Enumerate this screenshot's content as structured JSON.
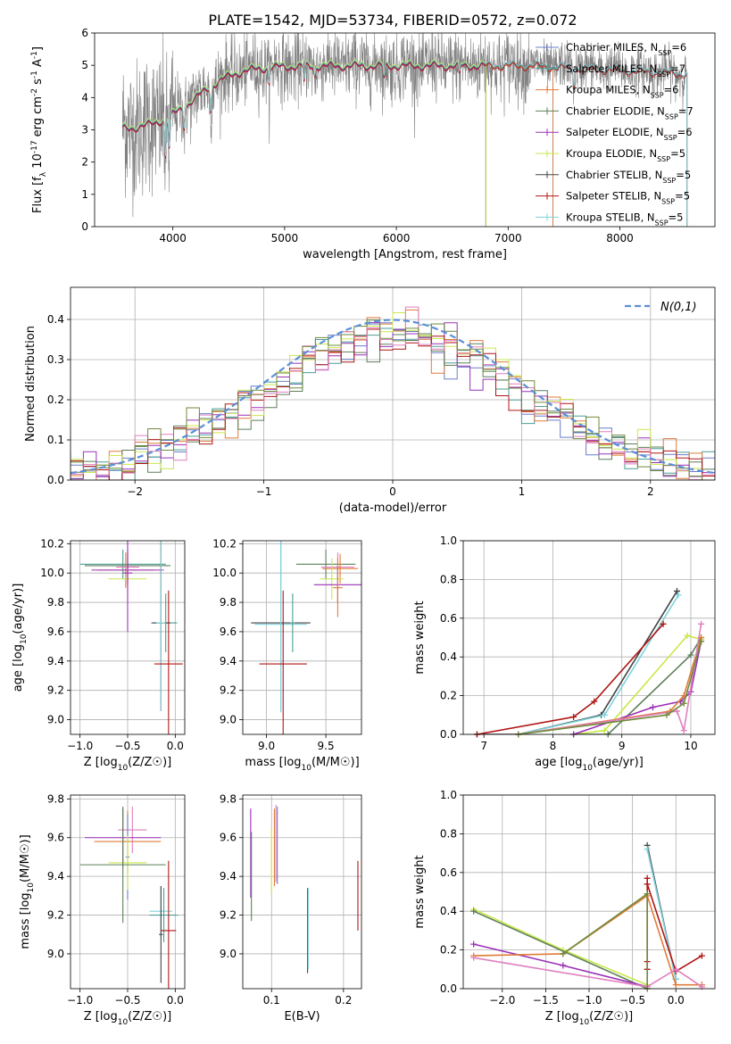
{
  "figure": {
    "title": "PLATE=1542, MJD=53734, FIBERID=0572, z=0.072"
  },
  "colors": {
    "chabrier_miles": "#6a7fc8",
    "salpeter_miles": "#4a9e95",
    "kroupa_miles": "#e07b39",
    "chabrier_elodie": "#5e7f5a",
    "salpeter_elodie": "#9b30b8",
    "kroupa_elodie": "#c9e84b",
    "chabrier_stelib": "#444444",
    "salpeter_stelib": "#b01515",
    "kroupa_stelib": "#7fd3dc",
    "pink": "#e07fbf",
    "olive": "#6f8a3a",
    "data": "#808080",
    "normal": "#5b8fd6",
    "grid": "#b0b0b0"
  },
  "chart_data": [
    {
      "id": "spectrum",
      "type": "line",
      "xlabel": "wavelength [Angstrom, rest frame]",
      "ylabel": "Flux [f_λ 10^-17 erg cm^-2 s^-1 A^-1]",
      "xlim": [
        3300,
        8850
      ],
      "ylim": [
        0,
        6
      ],
      "xticks": [
        4000,
        5000,
        6000,
        7000,
        8000
      ],
      "yticks": [
        0,
        1,
        2,
        3,
        4,
        5,
        6
      ],
      "grid": false,
      "legend_position": "top-right",
      "data_range": [
        3550,
        8600
      ],
      "series": [
        {
          "name": "Chabrier MILES, N_SSP=6",
          "color_key": "chabrier_miles",
          "range": [
            3550,
            7400
          ],
          "offset": 0.02
        },
        {
          "name": "Salpeter MILES, N_SSP=7",
          "color_key": "salpeter_miles",
          "range": [
            3550,
            7400
          ],
          "offset": 0.0
        },
        {
          "name": "Kroupa MILES, N_SSP=6",
          "color_key": "kroupa_miles",
          "range": [
            3550,
            7400
          ],
          "offset": -0.02
        },
        {
          "name": "Chabrier ELODIE, N_SSP=7",
          "color_key": "chabrier_elodie",
          "range": [
            3550,
            6800
          ],
          "offset": 0.03
        },
        {
          "name": "Salpeter ELODIE, N_SSP=6",
          "color_key": "salpeter_elodie",
          "range": [
            3550,
            6800
          ],
          "offset": -0.03
        },
        {
          "name": "Kroupa ELODIE, N_SSP=5",
          "color_key": "kroupa_elodie",
          "range": [
            3550,
            6800
          ],
          "offset": 0.05
        },
        {
          "name": "Chabrier STELIB, N_SSP=5",
          "color_key": "chabrier_stelib",
          "range": [
            3550,
            8600
          ],
          "offset": 0.0
        },
        {
          "name": "Salpeter STELIB, N_SSP=5",
          "color_key": "salpeter_stelib",
          "range": [
            3550,
            8600
          ],
          "offset": -0.05
        },
        {
          "name": "Kroupa STELIB, N_SSP=5",
          "color_key": "kroupa_stelib",
          "range": [
            3550,
            8600
          ],
          "offset": 0.02
        }
      ]
    },
    {
      "id": "residuals",
      "type": "histogram",
      "xlabel": "(data-model)/error",
      "ylabel": "Normed distribution",
      "xlim": [
        -2.5,
        2.5
      ],
      "ylim": [
        0,
        0.48
      ],
      "xticks": [
        -2,
        -1,
        0,
        1,
        2
      ],
      "yticks": [
        0.0,
        0.1,
        0.2,
        0.3,
        0.4
      ],
      "grid": true,
      "bin_width": 0.1,
      "legend_position": "top-right",
      "reference": {
        "name": "N(0,1)",
        "mean": 0,
        "sigma": 1
      },
      "series_color_keys": [
        "chabrier_miles",
        "salpeter_miles",
        "kroupa_miles",
        "chabrier_elodie",
        "salpeter_elodie",
        "kroupa_elodie",
        "salpeter_stelib",
        "pink",
        "olive"
      ]
    },
    {
      "id": "age_vs_Z",
      "type": "errorbar",
      "xlabel": "Z [log10(Z/Z☉)]",
      "ylabel": "age [log10(age/yr)]",
      "xlim": [
        -1.1,
        0.1
      ],
      "ylim": [
        8.9,
        10.22
      ],
      "xticks": [
        -1.0,
        -0.5,
        0.0
      ],
      "yticks": [
        9.0,
        9.2,
        9.4,
        9.6,
        9.8,
        10.0,
        10.2
      ],
      "grid": true,
      "points": [
        {
          "x": -0.55,
          "xerr": 0.45,
          "y": 10.06,
          "yerr": 0.1,
          "color_key": "salpeter_miles"
        },
        {
          "x": -0.5,
          "xerr": 0.45,
          "y": 10.05,
          "yerr": 0.1,
          "color_key": "chabrier_elodie"
        },
        {
          "x": -0.52,
          "xerr": 0.3,
          "y": 10.02,
          "yerr": 0.12,
          "color_key": "kroupa_miles"
        },
        {
          "x": -0.5,
          "xerr": 0.38,
          "y": 10.02,
          "yerr": 0.1,
          "color_key": "salpeter_elodie"
        },
        {
          "x": -0.5,
          "xerr": 0.2,
          "y": 9.96,
          "yerr": 0.14,
          "color_key": "kroupa_elodie"
        },
        {
          "x": -0.5,
          "xerr": 0.12,
          "y": 10.04,
          "yerr": 0.12,
          "color_key": "pink"
        },
        {
          "x": -0.5,
          "xerr": 0.05,
          "y": 10.0,
          "yerr": 0.4,
          "color_key": "salpeter_elodie"
        },
        {
          "x": -0.1,
          "xerr": 0.12,
          "y": 9.66,
          "yerr": 0.2,
          "color_key": "salpeter_miles"
        },
        {
          "x": -0.15,
          "xerr": 0.1,
          "y": 9.66,
          "yerr": 0.6,
          "color_key": "chabrier_stelib"
        },
        {
          "x": -0.15,
          "xerr": 0.05,
          "y": 9.66,
          "yerr": 0.6,
          "color_key": "kroupa_stelib"
        },
        {
          "x": -0.07,
          "xerr": 0.15,
          "y": 9.38,
          "yerr": 0.5,
          "color_key": "salpeter_stelib"
        }
      ]
    },
    {
      "id": "age_vs_mass",
      "type": "errorbar",
      "xlabel": "mass [log10(M/M☉)]",
      "ylabel": "",
      "xlim": [
        8.8,
        9.8
      ],
      "ylim": [
        8.9,
        10.22
      ],
      "xticks": [
        9.0,
        9.5
      ],
      "yticks": [
        9.0,
        9.2,
        9.4,
        9.6,
        9.8,
        10.0,
        10.2
      ],
      "grid": true,
      "points": [
        {
          "x": 9.5,
          "xerr": 0.25,
          "y": 10.06,
          "yerr": 0.1,
          "color_key": "chabrier_elodie"
        },
        {
          "x": 9.6,
          "xerr": 0.14,
          "y": 10.04,
          "yerr": 0.1,
          "color_key": "pink"
        },
        {
          "x": 9.62,
          "xerr": 0.15,
          "y": 10.03,
          "yerr": 0.1,
          "color_key": "kroupa_miles"
        },
        {
          "x": 9.55,
          "xerr": 0.1,
          "y": 9.96,
          "yerr": 0.14,
          "color_key": "kroupa_elodie"
        },
        {
          "x": 9.6,
          "xerr": 0.2,
          "y": 9.92,
          "yerr": 0.12,
          "color_key": "salpeter_elodie"
        },
        {
          "x": 9.6,
          "xerr": 0.04,
          "y": 9.9,
          "yerr": 0.2,
          "color_key": "kroupa_miles"
        },
        {
          "x": 9.12,
          "xerr": 0.25,
          "y": 9.66,
          "yerr": 0.6,
          "color_key": "chabrier_stelib"
        },
        {
          "x": 9.12,
          "xerr": 0.22,
          "y": 9.65,
          "yerr": 0.6,
          "color_key": "kroupa_stelib"
        },
        {
          "x": 9.22,
          "xerr": 0.02,
          "y": 9.66,
          "yerr": 0.2,
          "color_key": "salpeter_miles"
        },
        {
          "x": 9.14,
          "xerr": 0.2,
          "y": 9.38,
          "yerr": 0.5,
          "color_key": "salpeter_stelib"
        }
      ]
    },
    {
      "id": "mass_weight_vs_age",
      "type": "line",
      "xlabel": "age [log10(age/yr)]",
      "ylabel": "mass weight",
      "xlim": [
        6.7,
        10.35
      ],
      "ylim": [
        0,
        1
      ],
      "xticks": [
        7,
        8,
        9,
        10
      ],
      "yticks": [
        0.0,
        0.2,
        0.4,
        0.6,
        0.8,
        1.0
      ],
      "grid": true,
      "series": [
        {
          "color_key": "chabrier_stelib",
          "x": [
            6.9,
            7.5,
            8.7,
            9.8
          ],
          "y": [
            0.0,
            0.0,
            0.1,
            0.74
          ]
        },
        {
          "color_key": "kroupa_stelib",
          "x": [
            7.5,
            8.75,
            9.82
          ],
          "y": [
            0.0,
            0.1,
            0.72
          ]
        },
        {
          "color_key": "salpeter_stelib",
          "x": [
            6.9,
            8.3,
            8.6,
            9.6
          ],
          "y": [
            0.0,
            0.09,
            0.17,
            0.57
          ]
        },
        {
          "color_key": "kroupa_elodie",
          "x": [
            8.3,
            8.75,
            9.95,
            10.15
          ],
          "y": [
            0.0,
            0.02,
            0.51,
            0.49
          ]
        },
        {
          "color_key": "chabrier_elodie",
          "x": [
            8.3,
            8.8,
            10.0,
            10.15
          ],
          "y": [
            0.0,
            0.0,
            0.41,
            0.5
          ]
        },
        {
          "color_key": "salpeter_elodie",
          "x": [
            8.3,
            9.45,
            9.85,
            10.0,
            10.15
          ],
          "y": [
            0.0,
            0.14,
            0.17,
            0.22,
            0.48
          ]
        },
        {
          "color_key": "kroupa_miles",
          "x": [
            7.5,
            9.7,
            9.9,
            10.15
          ],
          "y": [
            0.0,
            0.12,
            0.2,
            0.5
          ]
        },
        {
          "color_key": "pink",
          "x": [
            7.5,
            9.8,
            9.9,
            10.15
          ],
          "y": [
            0.0,
            0.12,
            0.02,
            0.57
          ]
        },
        {
          "color_key": "olive",
          "x": [
            7.5,
            9.65,
            9.9,
            10.15
          ],
          "y": [
            0.0,
            0.1,
            0.16,
            0.48
          ]
        }
      ]
    },
    {
      "id": "mass_vs_Z",
      "type": "errorbar",
      "xlabel": "Z [log10(Z/Z☉)]",
      "ylabel": "mass [log10(M/M☉)]",
      "xlim": [
        -1.1,
        0.1
      ],
      "ylim": [
        8.82,
        9.82
      ],
      "xticks": [
        -1.0,
        -0.5,
        0.0
      ],
      "yticks": [
        9.0,
        9.2,
        9.4,
        9.6,
        9.8
      ],
      "grid": true,
      "points": [
        {
          "x": -0.45,
          "xerr": 0.15,
          "y": 9.64,
          "yerr": 0.12,
          "color_key": "pink"
        },
        {
          "x": -0.55,
          "xerr": 0.4,
          "y": 9.6,
          "yerr": 0.15,
          "color_key": "salpeter_elodie"
        },
        {
          "x": -0.5,
          "xerr": 0.35,
          "y": 9.58,
          "yerr": 0.16,
          "color_key": "kroupa_miles"
        },
        {
          "x": -0.5,
          "xerr": 0.02,
          "y": 9.5,
          "yerr": 0.22,
          "color_key": "chabrier_miles"
        },
        {
          "x": -0.5,
          "xerr": 0.2,
          "y": 9.47,
          "yerr": 0.14,
          "color_key": "kroupa_elodie"
        },
        {
          "x": -0.55,
          "xerr": 0.45,
          "y": 9.46,
          "yerr": 0.3,
          "color_key": "chabrier_elodie"
        },
        {
          "x": -0.15,
          "xerr": 0.12,
          "y": 9.22,
          "yerr": 0.13,
          "color_key": "kroupa_stelib"
        },
        {
          "x": -0.12,
          "xerr": 0.15,
          "y": 9.2,
          "yerr": 0.14,
          "color_key": "salpeter_miles"
        },
        {
          "x": -0.15,
          "xerr": 0.02,
          "y": 9.1,
          "yerr": 0.25,
          "color_key": "chabrier_stelib"
        },
        {
          "x": -0.07,
          "xerr": 0.08,
          "y": 9.12,
          "yerr": 0.36,
          "color_key": "salpeter_stelib"
        }
      ]
    },
    {
      "id": "mass_vs_ebv",
      "type": "errorbar",
      "xlabel": "E(B-V)",
      "ylabel": "",
      "xlim": [
        0.06,
        0.225
      ],
      "ylim": [
        8.82,
        9.82
      ],
      "xticks": [
        0.1,
        0.2
      ],
      "yticks": [
        9.0,
        9.2,
        9.4,
        9.6,
        9.8
      ],
      "grid": true,
      "points": [
        {
          "x": 0.071,
          "xerr": 0,
          "y": 9.52,
          "yerr": 0.23,
          "color_key": "salpeter_elodie"
        },
        {
          "x": 0.072,
          "xerr": 0,
          "y": 9.4,
          "yerr": 0.23,
          "color_key": "chabrier_elodie"
        },
        {
          "x": 0.1,
          "xerr": 0,
          "y": 9.48,
          "yerr": 0.17,
          "color_key": "kroupa_elodie"
        },
        {
          "x": 0.104,
          "xerr": 0,
          "y": 9.55,
          "yerr": 0.2,
          "color_key": "kroupa_miles"
        },
        {
          "x": 0.106,
          "xerr": 0,
          "y": 9.57,
          "yerr": 0.2,
          "color_key": "pink"
        },
        {
          "x": 0.108,
          "xerr": 0,
          "y": 9.56,
          "yerr": 0.2,
          "color_key": "chabrier_miles"
        },
        {
          "x": 0.15,
          "xerr": 0,
          "y": 9.12,
          "yerr": 0.22,
          "color_key": "chabrier_stelib"
        },
        {
          "x": 0.151,
          "xerr": 0,
          "y": 9.13,
          "yerr": 0.21,
          "color_key": "kroupa_stelib"
        },
        {
          "x": 0.22,
          "xerr": 0,
          "y": 9.3,
          "yerr": 0.18,
          "color_key": "salpeter_stelib"
        }
      ]
    },
    {
      "id": "mass_weight_vs_Z",
      "type": "line",
      "xlabel": "Z [log10(Z/Z☉)]",
      "ylabel": "mass weight",
      "xlim": [
        -2.45,
        0.45
      ],
      "ylim": [
        0,
        1
      ],
      "xticks": [
        -2.0,
        -1.5,
        -1.0,
        -0.5,
        0.0
      ],
      "yticks": [
        0.0,
        0.2,
        0.4,
        0.6,
        0.8,
        1.0
      ],
      "grid": true,
      "series": [
        {
          "color_key": "chabrier_stelib",
          "x": [
            -0.33,
            0.0
          ],
          "y": [
            0.74,
            0.05
          ]
        },
        {
          "color_key": "kroupa_stelib",
          "x": [
            -0.33,
            0.0
          ],
          "y": [
            0.72,
            0.05
          ]
        },
        {
          "color_key": "salpeter_stelib",
          "x": [
            -0.33,
            -0.33,
            -0.33,
            -0.33,
            0.0,
            0.3
          ],
          "y": [
            0.1,
            0.14,
            0.57,
            0.54,
            0.09,
            0.17
          ]
        },
        {
          "color_key": "kroupa_elodie",
          "x": [
            -2.33,
            -1.3,
            -0.33
          ],
          "y": [
            0.41,
            0.2,
            0.02
          ]
        },
        {
          "color_key": "chabrier_elodie",
          "x": [
            -2.33,
            -0.33
          ],
          "y": [
            0.4,
            0.0
          ]
        },
        {
          "color_key": "salpeter_elodie",
          "x": [
            -2.33,
            -1.3,
            -0.33
          ],
          "y": [
            0.23,
            0.12,
            0.01
          ]
        },
        {
          "color_key": "kroupa_miles",
          "x": [
            -2.33,
            -1.3,
            -0.33,
            0.0,
            0.3
          ],
          "y": [
            0.17,
            0.18,
            0.48,
            0.02,
            0.02
          ]
        },
        {
          "color_key": "pink",
          "x": [
            -2.33,
            -0.33,
            0.0,
            0.3
          ],
          "y": [
            0.16,
            0.01,
            0.1,
            0.01
          ]
        },
        {
          "color_key": "olive",
          "x": [
            -1.3,
            -0.33,
            -0.33
          ],
          "y": [
            0.18,
            0.49,
            0.0
          ]
        }
      ]
    }
  ]
}
